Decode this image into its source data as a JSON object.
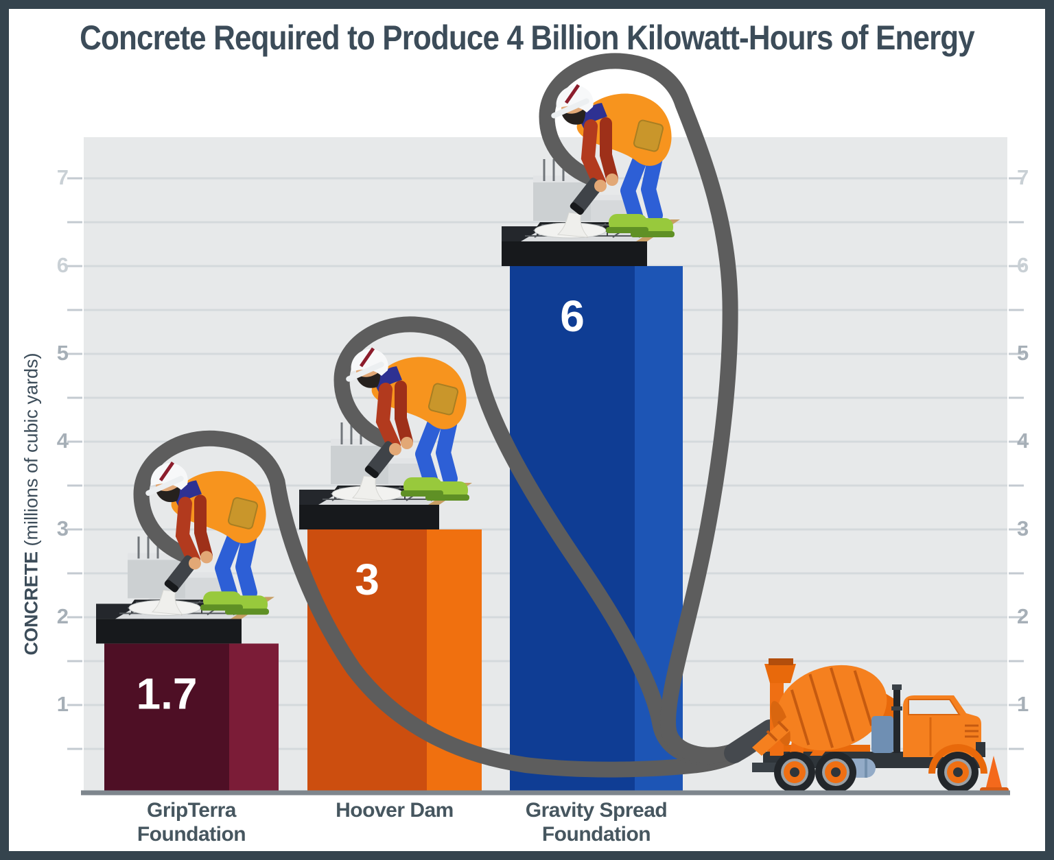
{
  "title": "Concrete Required to Produce 4 Billion Kilowatt-Hours of Energy",
  "y_axis": {
    "label_bold": "CONCRETE",
    "label_rest": " (millions of cubic yards)",
    "ticks": [
      1,
      2,
      3,
      4,
      5,
      6,
      7
    ],
    "faded_ticks": [
      6,
      7
    ],
    "minor_step": 0.5,
    "sides": [
      "left",
      "right"
    ]
  },
  "chart_data": {
    "type": "bar",
    "title": "Concrete Required to Produce 4 Billion Kilowatt-Hours of Energy",
    "xlabel": "",
    "ylabel": "CONCRETE (millions of cubic yards)",
    "ylim": [
      0,
      7.5
    ],
    "yticks": [
      1,
      2,
      3,
      4,
      5,
      6,
      7
    ],
    "grid": true,
    "legend": "none",
    "categories": [
      "GripTerra Foundation",
      "Hoover Dam",
      "Gravity Spread Foundation"
    ],
    "category_lines": [
      [
        "GripTerra",
        "Foundation"
      ],
      [
        "Hoover Dam"
      ],
      [
        "Gravity Spread",
        "Foundation"
      ]
    ],
    "values": [
      1.7,
      3,
      6
    ],
    "value_labels": [
      "1.7",
      "3",
      "6"
    ],
    "unit": "millions of cubic yards",
    "bar_colors": [
      {
        "front": "#4e0f25",
        "side": "#7b1c37"
      },
      {
        "front": "#cc4e0f",
        "side": "#f0700f"
      },
      {
        "front": "#0f3d94",
        "side": "#1d55b5"
      }
    ]
  },
  "illustration": {
    "worker": "construction-worker-pouring-concrete",
    "truck": "concrete-mixer-truck",
    "cone": "traffic-cone",
    "hose": "concrete-pump-hose",
    "hose_color": "#5d5d5d"
  },
  "colors": {
    "frame": "#35444e",
    "background": "#ffffff",
    "plot_bg": "#e7e9ea",
    "grid": "#d4d9dc",
    "axis": "#7e868d",
    "tick": "#c3cad0",
    "tick_label": "#a6afb7",
    "tick_label_faded": "#c9d0d5",
    "title": "#3c4c59",
    "category_label": "#46565f",
    "value_label": "#ffffff"
  }
}
